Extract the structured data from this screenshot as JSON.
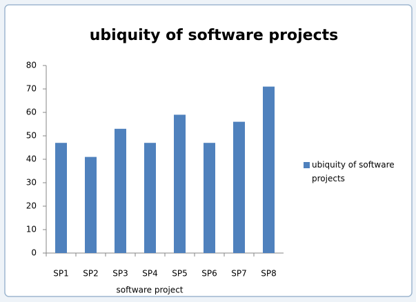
{
  "chart_data": {
    "type": "bar",
    "title": "ubiquity of software projects",
    "x_label": "software project",
    "categories": [
      "SP1",
      "SP2",
      "SP3",
      "SP4",
      "SP5",
      "SP6",
      "SP7",
      "SP8"
    ],
    "series": [
      {
        "name": "ubiquity of software projects",
        "color": "#4f81bd",
        "values": [
          47,
          41,
          53,
          47,
          59,
          47,
          56,
          71
        ]
      }
    ],
    "ylim": [
      0,
      80
    ],
    "yticks": [
      0,
      10,
      20,
      30,
      40,
      50,
      60,
      70,
      80
    ],
    "grid": false,
    "legend": "right"
  }
}
